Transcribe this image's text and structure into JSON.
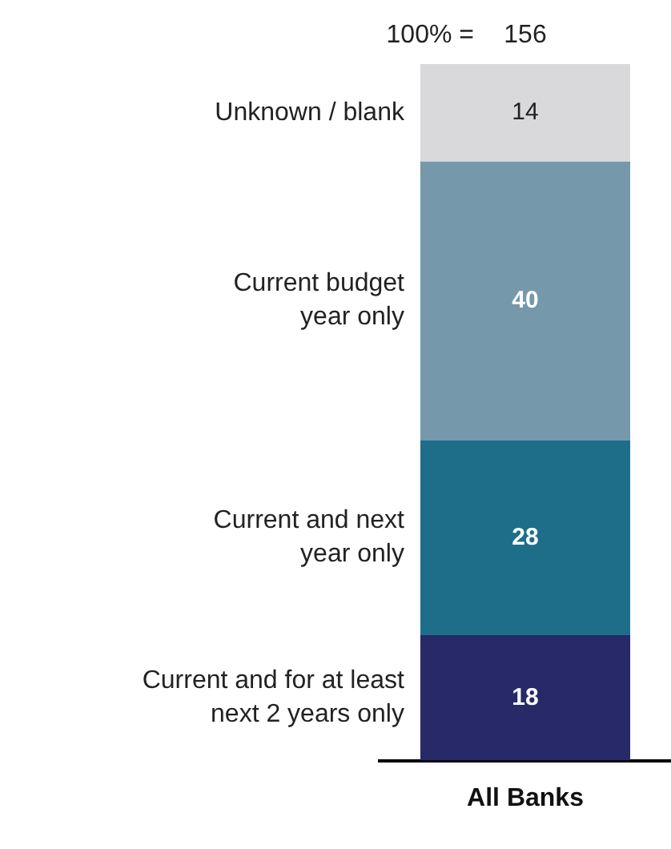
{
  "chart_data": {
    "type": "bar",
    "stacked": true,
    "categories": [
      "All Banks"
    ],
    "series": [
      {
        "name": "Current and for at least next 2 years only",
        "color": "#272a67",
        "values": [
          18
        ]
      },
      {
        "name": "Current and next year only",
        "color": "#1e6e8a",
        "values": [
          28
        ]
      },
      {
        "name": "Current budget year only",
        "color": "#7598aa",
        "values": [
          40
        ]
      },
      {
        "name": "Unknown / blank",
        "color": "#d9d9db",
        "values": [
          14
        ]
      }
    ],
    "data_labels": true,
    "annotations": [
      "100% =",
      "156"
    ],
    "legend": false
  }
}
